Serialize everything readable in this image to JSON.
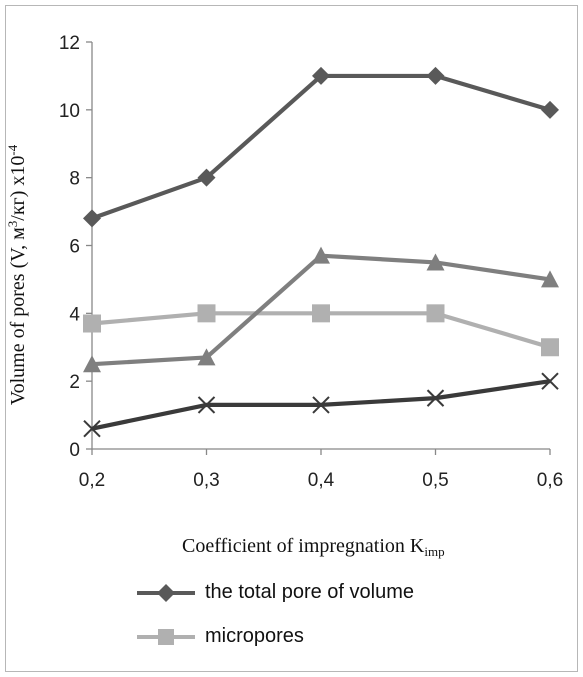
{
  "chart_data": {
    "type": "line",
    "x": [
      "0,2",
      "0,3",
      "0,4",
      "0,5",
      "0,6"
    ],
    "xlabel_main": "Coefficient of impregnation K",
    "xlabel_sub": "imp",
    "ylabel_main": "Volume of pores (V,  м",
    "ylabel_sup1": "3",
    "ylabel_mid": "/кг) x10",
    "ylabel_sup2": "-4",
    "ylim": [
      0,
      12
    ],
    "yticks": [
      "0",
      "2",
      "4",
      "6",
      "8",
      "10",
      "12"
    ],
    "grid": false,
    "legend_position": "bottom",
    "series": [
      {
        "name": "the total pore of volume",
        "values": [
          6.8,
          8,
          11,
          11,
          10
        ],
        "color": "#595959",
        "marker": "diamond"
      },
      {
        "name": "micropores",
        "values": [
          3.7,
          4,
          4,
          4,
          3
        ],
        "color": "#b0b0b0",
        "marker": "square"
      },
      {
        "values": [
          2.5,
          2.7,
          5.7,
          5.5,
          5
        ],
        "color": "#7f7f7f",
        "marker": "triangle"
      },
      {
        "values": [
          0.6,
          1.3,
          1.3,
          1.5,
          2
        ],
        "color": "#3a3a3a",
        "marker": "x"
      }
    ]
  }
}
